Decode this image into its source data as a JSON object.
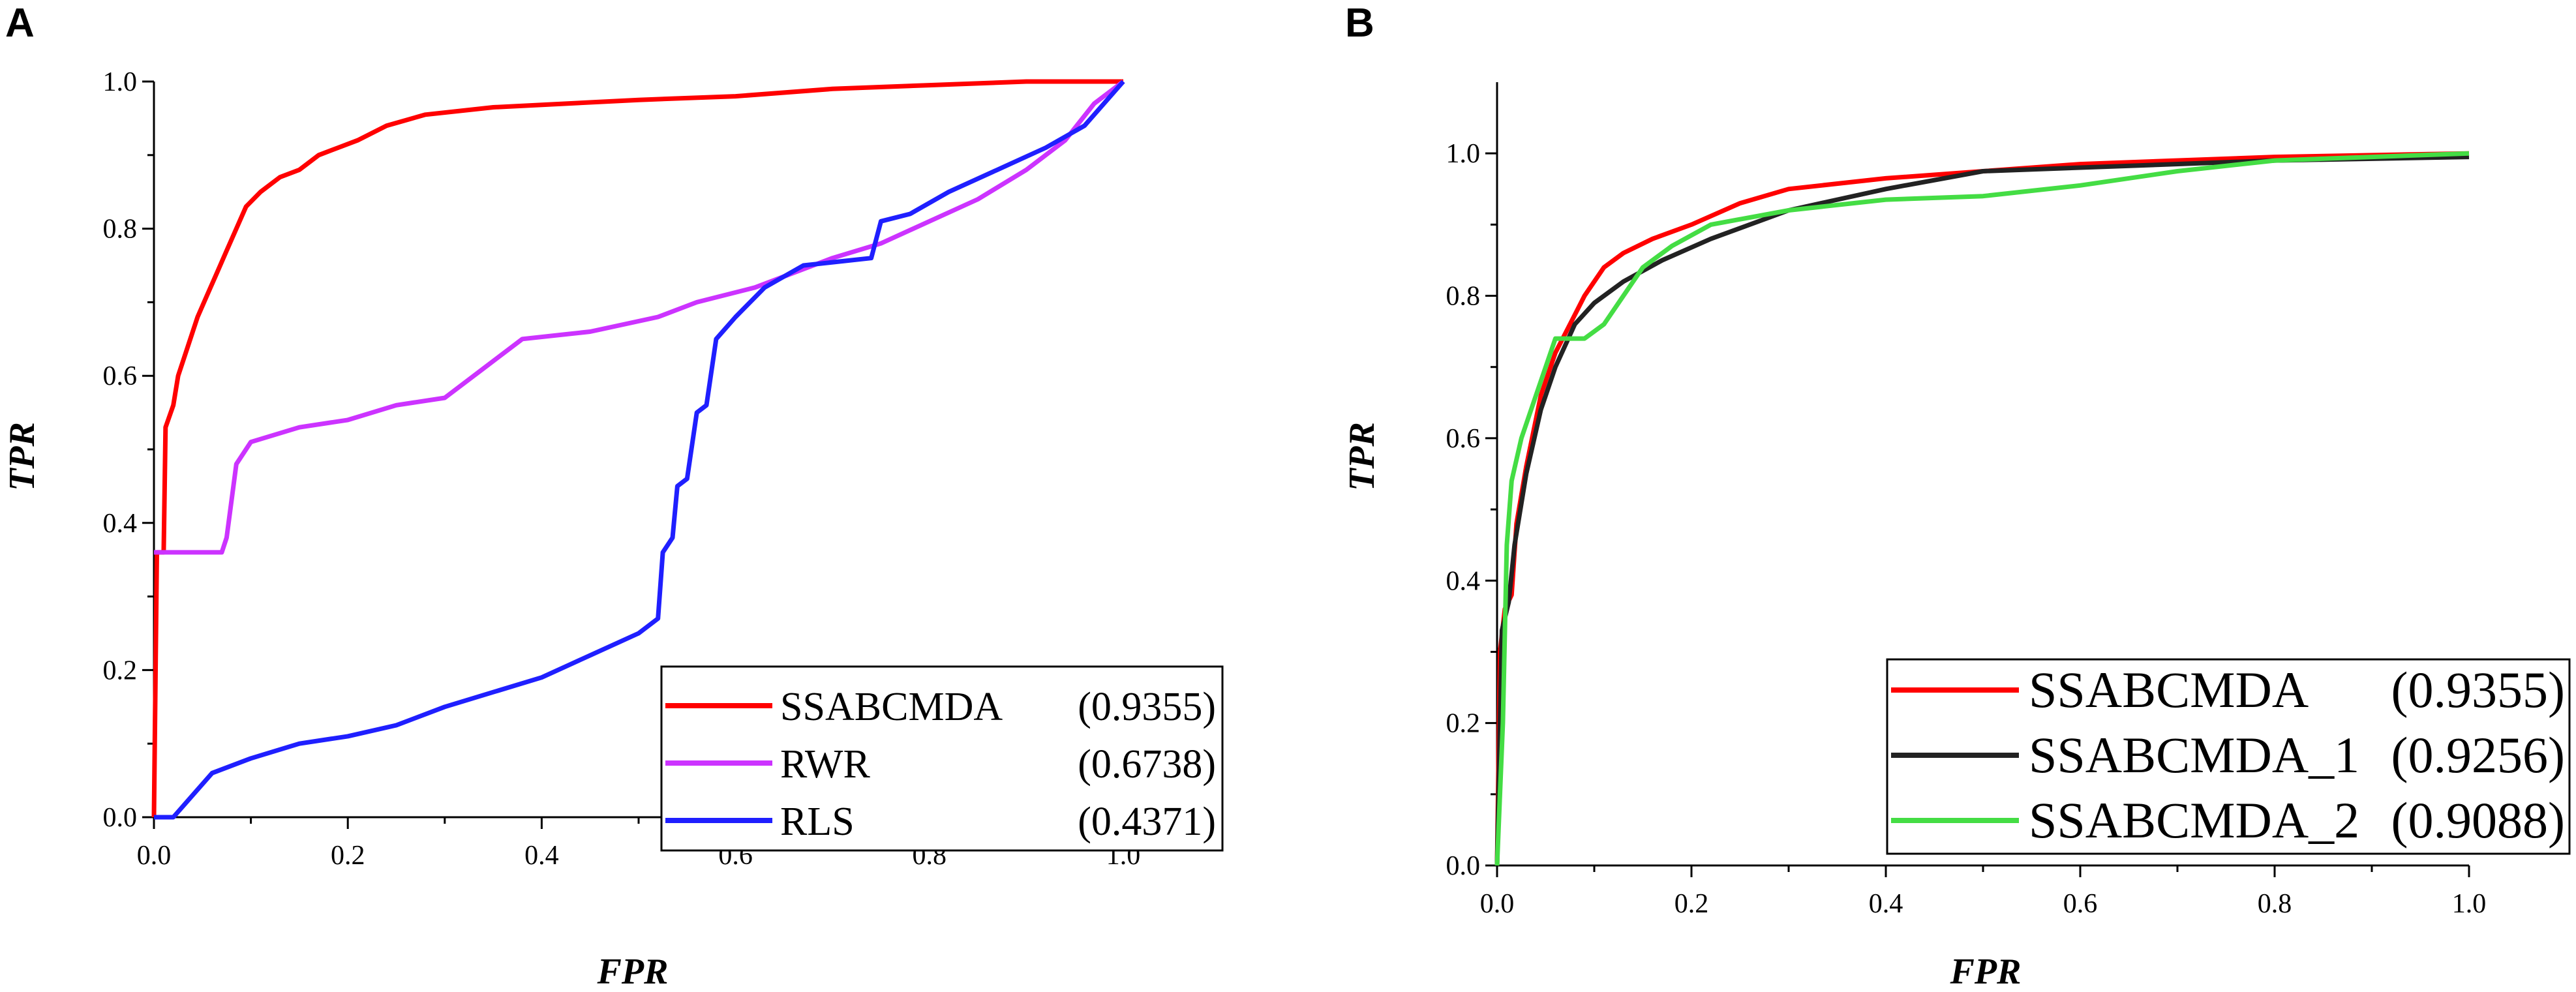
{
  "chart_data": [
    {
      "panel": "A",
      "type": "line",
      "xlabel": "FPR",
      "ylabel": "TPR",
      "xlim": [
        0,
        1
      ],
      "ylim": [
        0,
        1
      ],
      "x_ticks": [
        "0.0",
        "0.2",
        "0.4",
        "0.6",
        "0.8",
        "1.0"
      ],
      "y_ticks": [
        "0.0",
        "0.2",
        "0.4",
        "0.6",
        "0.8",
        "1.0"
      ],
      "legend_position": "bottom-right",
      "series": [
        {
          "name": "SSABCMDA",
          "auc": "(0.9355)",
          "color": "#ff0000",
          "points": [
            [
              0,
              0
            ],
            [
              0.003,
              0.36
            ],
            [
              0.01,
              0.36
            ],
            [
              0.012,
              0.53
            ],
            [
              0.02,
              0.56
            ],
            [
              0.025,
              0.6
            ],
            [
              0.035,
              0.64
            ],
            [
              0.045,
              0.68
            ],
            [
              0.055,
              0.71
            ],
            [
              0.065,
              0.74
            ],
            [
              0.075,
              0.77
            ],
            [
              0.085,
              0.8
            ],
            [
              0.095,
              0.83
            ],
            [
              0.11,
              0.85
            ],
            [
              0.13,
              0.87
            ],
            [
              0.15,
              0.88
            ],
            [
              0.17,
              0.9
            ],
            [
              0.19,
              0.91
            ],
            [
              0.21,
              0.92
            ],
            [
              0.24,
              0.94
            ],
            [
              0.28,
              0.955
            ],
            [
              0.35,
              0.965
            ],
            [
              0.5,
              0.975
            ],
            [
              0.6,
              0.98
            ],
            [
              0.7,
              0.99
            ],
            [
              0.8,
              0.995
            ],
            [
              0.9,
              1.0
            ],
            [
              1.0,
              1.0
            ]
          ]
        },
        {
          "name": "RWR",
          "auc": "(0.6738)",
          "color": "#cc33ff",
          "points": [
            [
              0,
              0.36
            ],
            [
              0.07,
              0.36
            ],
            [
              0.075,
              0.38
            ],
            [
              0.085,
              0.48
            ],
            [
              0.1,
              0.51
            ],
            [
              0.15,
              0.53
            ],
            [
              0.2,
              0.54
            ],
            [
              0.25,
              0.56
            ],
            [
              0.3,
              0.57
            ],
            [
              0.34,
              0.61
            ],
            [
              0.38,
              0.65
            ],
            [
              0.45,
              0.66
            ],
            [
              0.52,
              0.68
            ],
            [
              0.56,
              0.7
            ],
            [
              0.62,
              0.72
            ],
            [
              0.7,
              0.76
            ],
            [
              0.75,
              0.78
            ],
            [
              0.8,
              0.81
            ],
            [
              0.85,
              0.84
            ],
            [
              0.9,
              0.88
            ],
            [
              0.94,
              0.92
            ],
            [
              0.97,
              0.97
            ],
            [
              1.0,
              1.0
            ]
          ]
        },
        {
          "name": "RLS",
          "auc": "(0.4371)",
          "color": "#1f1fff",
          "points": [
            [
              0,
              0
            ],
            [
              0.02,
              0
            ],
            [
              0.04,
              0.03
            ],
            [
              0.06,
              0.06
            ],
            [
              0.1,
              0.08
            ],
            [
              0.15,
              0.1
            ],
            [
              0.2,
              0.11
            ],
            [
              0.25,
              0.125
            ],
            [
              0.3,
              0.15
            ],
            [
              0.35,
              0.17
            ],
            [
              0.4,
              0.19
            ],
            [
              0.45,
              0.22
            ],
            [
              0.5,
              0.25
            ],
            [
              0.52,
              0.27
            ],
            [
              0.525,
              0.36
            ],
            [
              0.535,
              0.38
            ],
            [
              0.54,
              0.45
            ],
            [
              0.55,
              0.46
            ],
            [
              0.56,
              0.55
            ],
            [
              0.57,
              0.56
            ],
            [
              0.58,
              0.65
            ],
            [
              0.6,
              0.68
            ],
            [
              0.63,
              0.72
            ],
            [
              0.67,
              0.75
            ],
            [
              0.74,
              0.76
            ],
            [
              0.75,
              0.81
            ],
            [
              0.78,
              0.82
            ],
            [
              0.82,
              0.85
            ],
            [
              0.87,
              0.88
            ],
            [
              0.92,
              0.91
            ],
            [
              0.96,
              0.94
            ],
            [
              1.0,
              1.0
            ]
          ]
        }
      ]
    },
    {
      "panel": "B",
      "type": "line",
      "xlabel": "FPR",
      "ylabel": "TPR",
      "xlim": [
        0,
        1
      ],
      "ylim": [
        0,
        1.1
      ],
      "x_ticks": [
        "0.0",
        "0.2",
        "0.4",
        "0.6",
        "0.8",
        "1.0"
      ],
      "y_ticks": [
        "0.0",
        "0.2",
        "0.4",
        "0.6",
        "0.8",
        "1.0"
      ],
      "legend_position": "bottom-right",
      "series": [
        {
          "name": "SSABCMDA",
          "auc": "(0.9355)",
          "color": "#ff0000",
          "points": [
            [
              0,
              0
            ],
            [
              0.003,
              0.3
            ],
            [
              0.008,
              0.36
            ],
            [
              0.015,
              0.38
            ],
            [
              0.02,
              0.48
            ],
            [
              0.03,
              0.56
            ],
            [
              0.045,
              0.66
            ],
            [
              0.06,
              0.72
            ],
            [
              0.075,
              0.76
            ],
            [
              0.09,
              0.8
            ],
            [
              0.11,
              0.84
            ],
            [
              0.13,
              0.86
            ],
            [
              0.16,
              0.88
            ],
            [
              0.2,
              0.9
            ],
            [
              0.25,
              0.93
            ],
            [
              0.3,
              0.95
            ],
            [
              0.4,
              0.965
            ],
            [
              0.5,
              0.975
            ],
            [
              0.6,
              0.985
            ],
            [
              0.8,
              0.995
            ],
            [
              1.0,
              1.0
            ]
          ]
        },
        {
          "name": "SSABCMDA_1",
          "auc": "(0.9256)",
          "color": "#222222",
          "points": [
            [
              0,
              0
            ],
            [
              0.005,
              0.33
            ],
            [
              0.012,
              0.37
            ],
            [
              0.018,
              0.45
            ],
            [
              0.03,
              0.55
            ],
            [
              0.045,
              0.64
            ],
            [
              0.06,
              0.7
            ],
            [
              0.08,
              0.76
            ],
            [
              0.1,
              0.79
            ],
            [
              0.13,
              0.82
            ],
            [
              0.17,
              0.85
            ],
            [
              0.22,
              0.88
            ],
            [
              0.3,
              0.92
            ],
            [
              0.4,
              0.95
            ],
            [
              0.5,
              0.975
            ],
            [
              0.6,
              0.98
            ],
            [
              0.8,
              0.99
            ],
            [
              1.0,
              0.995
            ]
          ]
        },
        {
          "name": "SSABCMDA_2",
          "auc": "(0.9088)",
          "color": "#44dd44",
          "points": [
            [
              0,
              0
            ],
            [
              0.006,
              0.2
            ],
            [
              0.01,
              0.45
            ],
            [
              0.015,
              0.54
            ],
            [
              0.025,
              0.6
            ],
            [
              0.04,
              0.66
            ],
            [
              0.05,
              0.7
            ],
            [
              0.06,
              0.74
            ],
            [
              0.09,
              0.74
            ],
            [
              0.11,
              0.76
            ],
            [
              0.13,
              0.8
            ],
            [
              0.15,
              0.84
            ],
            [
              0.18,
              0.87
            ],
            [
              0.22,
              0.9
            ],
            [
              0.3,
              0.92
            ],
            [
              0.4,
              0.935
            ],
            [
              0.5,
              0.94
            ],
            [
              0.6,
              0.955
            ],
            [
              0.7,
              0.975
            ],
            [
              0.8,
              0.99
            ],
            [
              0.9,
              0.995
            ],
            [
              1.0,
              1.0
            ]
          ]
        }
      ]
    }
  ]
}
